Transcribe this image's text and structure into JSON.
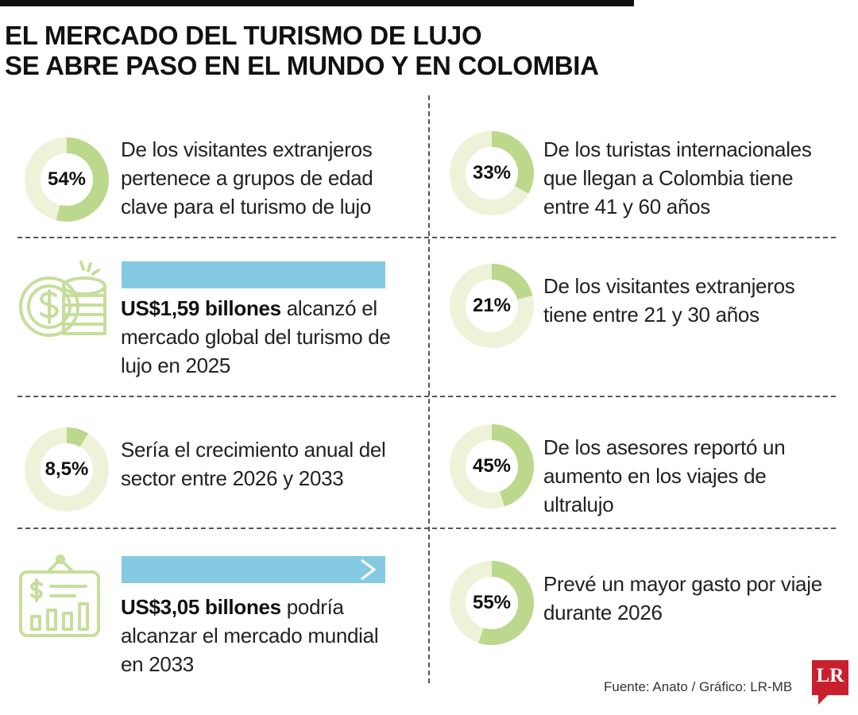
{
  "title": {
    "line1": "EL MERCADO DEL TURISMO DE LUJO",
    "line2": "SE ABRE PASO EN EL MUNDO Y EN COLOMBIA"
  },
  "colors": {
    "donut_fill": "#bcd88c",
    "donut_track": "#eef2d9",
    "bar": "#86c9e3",
    "icon_stroke": "#c6de9b",
    "logo_red": "#c8202d"
  },
  "stats": [
    {
      "label": "54%",
      "text": "De los visitantes extranjeros pertenece a grupos de edad clave para el turismo de lujo"
    },
    {
      "label": "33%",
      "text": "De los turistas internacionales que llegan a Colombia tiene entre 41 y 60 años"
    },
    {
      "label": "21%",
      "text": "De los visitantes extranjeros tiene entre 21 y 30 años"
    },
    {
      "label": "8,5%",
      "text": "Sería el crecimiento anual del sector entre 2026 y 2033"
    },
    {
      "label": "45%",
      "text": "De los asesores reportó un aumento en los viajes de ultralujo"
    },
    {
      "label": "55%",
      "text": "Prevé un mayor gasto por viaje durante 2026"
    }
  ],
  "market": [
    {
      "bold": "US$1,59 billones",
      "rest": " alcanzó el mercado global del turismo de lujo en 2025",
      "icon": "coins-icon"
    },
    {
      "bold": "US$3,05 billones",
      "rest": " podría alcanzar el mercado mundial en 2033",
      "icon": "chart-board-icon"
    }
  ],
  "chart_data": {
    "type": "pie",
    "categories": [
      "54%",
      "33%",
      "21%",
      "8,5%",
      "45%",
      "55%"
    ],
    "values": [
      54,
      33,
      21,
      8.5,
      45,
      55
    ],
    "unit": "%",
    "bars": {
      "categories": [
        "US$1,59 billones",
        "US$3,05 billones"
      ],
      "values": [
        1.59,
        3.05
      ],
      "years": [
        "2025",
        "2033"
      ]
    }
  },
  "source": "Fuente: Anato  / Gráfico: LR-MB",
  "logo": "LR"
}
